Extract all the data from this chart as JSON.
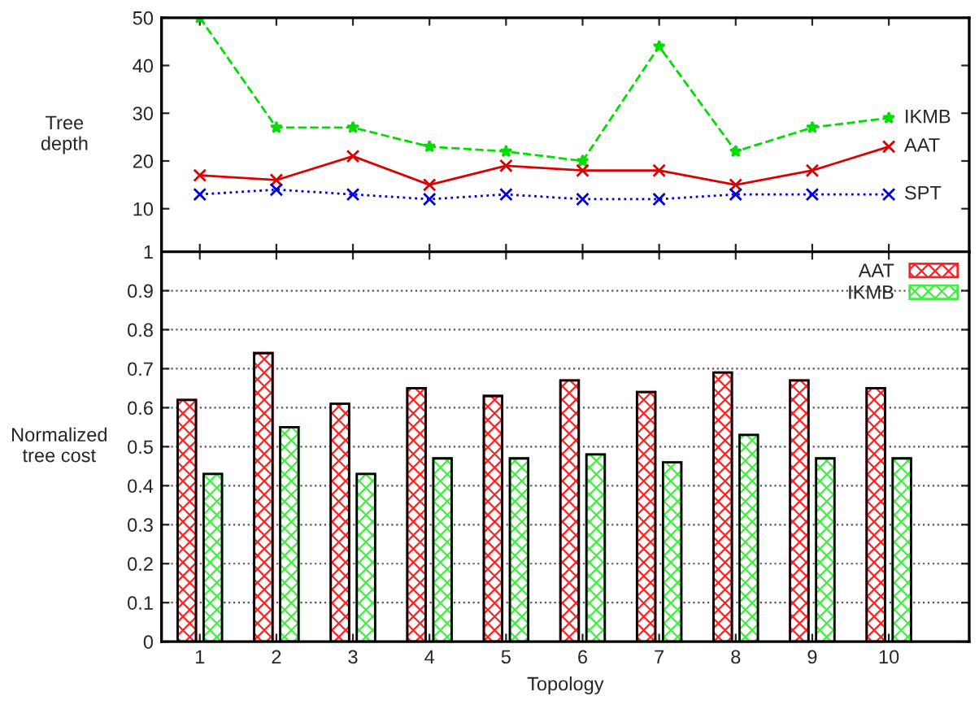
{
  "chart_data": [
    {
      "type": "line",
      "ylabel": "Tree\ndepth",
      "categories": [
        "1",
        "2",
        "3",
        "4",
        "5",
        "6",
        "7",
        "8",
        "9",
        "10"
      ],
      "ylim": [
        1,
        50
      ],
      "yticks": [
        1,
        10,
        20,
        30,
        40,
        50
      ],
      "tick_labels": "y",
      "grid": false,
      "legend": false,
      "series": [
        {
          "name": "IKMB",
          "color": "#00dd00",
          "marker": "star",
          "line_style": "dashed",
          "values": [
            50,
            27,
            27,
            23,
            22,
            20,
            44,
            22,
            27,
            29
          ]
        },
        {
          "name": "AAT",
          "color": "#dd0000",
          "marker": "cross",
          "line_style": "solid",
          "values": [
            17,
            16,
            21,
            15,
            19,
            18,
            18,
            15,
            18,
            23
          ]
        },
        {
          "name": "SPT",
          "color": "#0000dd",
          "marker": "cross",
          "line_style": "dotted",
          "values": [
            13,
            14,
            13,
            12,
            13,
            12,
            12,
            13,
            13,
            13
          ]
        }
      ]
    },
    {
      "type": "bar",
      "ylabel": "Normalized\ntree cost",
      "xlabel": "Topology",
      "categories": [
        "1",
        "2",
        "3",
        "4",
        "5",
        "6",
        "7",
        "8",
        "9",
        "10"
      ],
      "ylim": [
        0,
        1
      ],
      "yticks": [
        0,
        0.1,
        0.2,
        0.3,
        0.4,
        0.5,
        0.6,
        0.7,
        0.8,
        0.9
      ],
      "grid": "y",
      "legend": "top right",
      "series": [
        {
          "name": "AAT",
          "color": "#ff2020",
          "values": [
            0.62,
            0.74,
            0.61,
            0.65,
            0.63,
            0.67,
            0.64,
            0.69,
            0.67,
            0.65
          ]
        },
        {
          "name": "IKMB",
          "color": "#40ee40",
          "values": [
            0.43,
            0.55,
            0.43,
            0.47,
            0.47,
            0.48,
            0.46,
            0.53,
            0.47,
            0.47
          ]
        }
      ]
    }
  ]
}
